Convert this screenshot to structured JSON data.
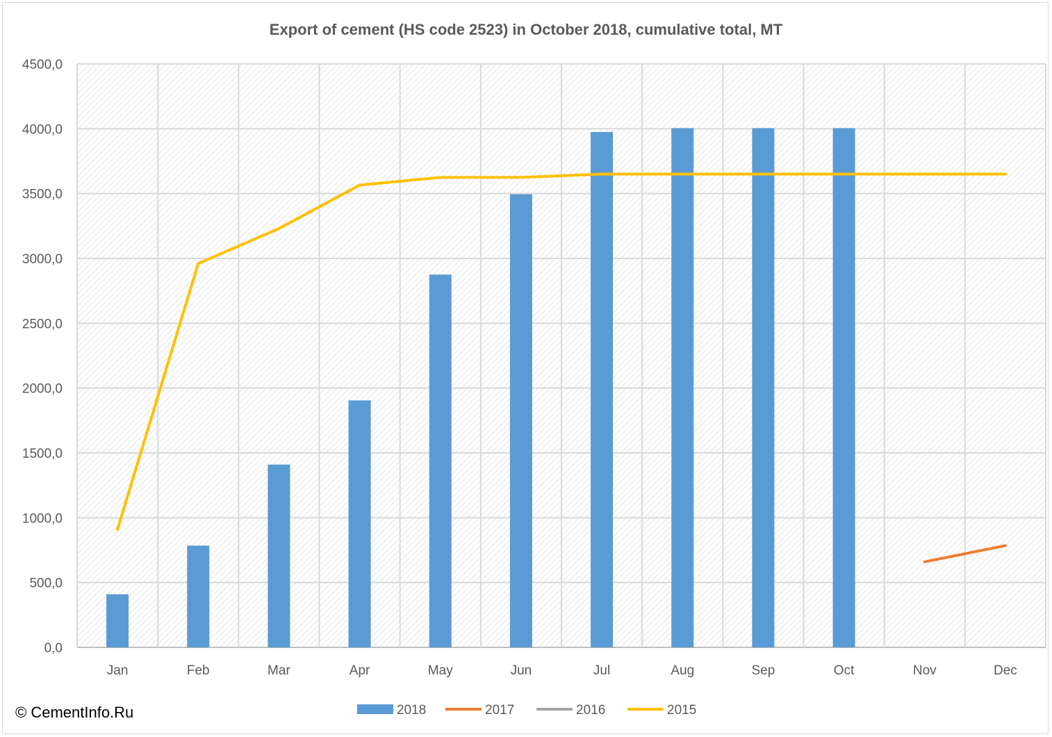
{
  "chart_data": {
    "type": "bar",
    "title": "Export of cement  (HS code 2523) in October 2018, cumulative total, MT",
    "xlabel": "",
    "ylabel": "",
    "categories": [
      "Jan",
      "Feb",
      "Mar",
      "Apr",
      "May",
      "Jun",
      "Jul",
      "Aug",
      "Sep",
      "Oct",
      "Nov",
      "Dec"
    ],
    "y_ticks": [
      "0,0",
      "500,0",
      "1000,0",
      "1500,0",
      "2000,0",
      "2500,0",
      "3000,0",
      "3500,0",
      "4000,0",
      "4500,0"
    ],
    "ylim": [
      0,
      4500
    ],
    "grid": true,
    "legend_position": "bottom",
    "series": [
      {
        "name": "2018",
        "type": "bar",
        "color": "#5b9bd5",
        "values": [
          410,
          785,
          1410,
          1905,
          2875,
          3495,
          3975,
          4005,
          4005,
          4005,
          null,
          null
        ]
      },
      {
        "name": "2017",
        "type": "line",
        "color": "#ed7d31",
        "values": [
          null,
          null,
          null,
          null,
          null,
          null,
          null,
          null,
          null,
          null,
          660,
          785
        ]
      },
      {
        "name": "2016",
        "type": "line",
        "color": "#a5a5a5",
        "values": [
          null,
          null,
          null,
          null,
          null,
          null,
          null,
          null,
          null,
          null,
          null,
          null
        ]
      },
      {
        "name": "2015",
        "type": "line",
        "color": "#ffc000",
        "values": [
          910,
          2960,
          3230,
          3565,
          3625,
          3625,
          3650,
          3650,
          3650,
          3650,
          3650,
          3650
        ]
      }
    ]
  },
  "footer": {
    "copyright": "© CementInfo.Ru"
  }
}
